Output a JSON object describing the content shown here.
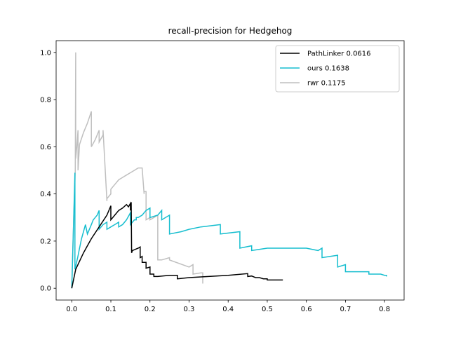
{
  "chart_data": {
    "type": "line",
    "title": "recall-precision for Hedgehog",
    "xlabel": "",
    "ylabel": "",
    "xlim": [
      -0.04,
      0.85
    ],
    "ylim": [
      -0.05,
      1.05
    ],
    "xticks": [
      "0.0",
      "0.1",
      "0.2",
      "0.3",
      "0.4",
      "0.5",
      "0.6",
      "0.7",
      "0.8"
    ],
    "xtick_values": [
      0.0,
      0.1,
      0.2,
      0.3,
      0.4,
      0.5,
      0.6,
      0.7,
      0.8
    ],
    "yticks": [
      "0.0",
      "0.2",
      "0.4",
      "0.6",
      "0.8",
      "1.0"
    ],
    "ytick_values": [
      0.0,
      0.2,
      0.4,
      0.6,
      0.8,
      1.0
    ],
    "grid": false,
    "legend_position": "upper-right",
    "series": [
      {
        "name": "PathLinker 0.0616",
        "color": "#000000",
        "x": [
          0.0,
          0.01,
          0.03,
          0.05,
          0.07,
          0.09,
          0.1,
          0.1,
          0.11,
          0.12,
          0.13,
          0.14,
          0.145,
          0.15,
          0.15,
          0.152,
          0.153,
          0.155,
          0.155,
          0.17,
          0.175,
          0.175,
          0.18,
          0.18,
          0.19,
          0.19,
          0.2,
          0.2,
          0.21,
          0.21,
          0.22,
          0.25,
          0.27,
          0.27,
          0.3,
          0.35,
          0.4,
          0.45,
          0.45,
          0.46,
          0.47,
          0.48,
          0.49,
          0.5,
          0.5,
          0.54
        ],
        "y": [
          0.0,
          0.08,
          0.15,
          0.21,
          0.26,
          0.31,
          0.35,
          0.29,
          0.31,
          0.33,
          0.34,
          0.355,
          0.345,
          0.36,
          0.33,
          0.365,
          0.15,
          0.16,
          0.16,
          0.17,
          0.175,
          0.13,
          0.135,
          0.11,
          0.11,
          0.085,
          0.09,
          0.06,
          0.06,
          0.05,
          0.05,
          0.055,
          0.055,
          0.04,
          0.045,
          0.05,
          0.055,
          0.062,
          0.05,
          0.052,
          0.045,
          0.045,
          0.04,
          0.04,
          0.035,
          0.035
        ]
      },
      {
        "name": "ours 0.1638",
        "color": "#17becf",
        "x": [
          0.0,
          0.005,
          0.008,
          0.008,
          0.015,
          0.02,
          0.025,
          0.03,
          0.035,
          0.04,
          0.045,
          0.05,
          0.055,
          0.06,
          0.065,
          0.07,
          0.07,
          0.08,
          0.09,
          0.09,
          0.1,
          0.11,
          0.12,
          0.12,
          0.13,
          0.135,
          0.14,
          0.15,
          0.15,
          0.16,
          0.165,
          0.165,
          0.17,
          0.18,
          0.19,
          0.2,
          0.2,
          0.22,
          0.23,
          0.23,
          0.25,
          0.25,
          0.28,
          0.3,
          0.33,
          0.38,
          0.38,
          0.43,
          0.43,
          0.46,
          0.46,
          0.5,
          0.55,
          0.6,
          0.63,
          0.64,
          0.64,
          0.68,
          0.68,
          0.7,
          0.7,
          0.76,
          0.76,
          0.79,
          0.8,
          0.805,
          0.805
        ],
        "y": [
          0.0,
          0.3,
          0.49,
          0.08,
          0.13,
          0.17,
          0.21,
          0.24,
          0.27,
          0.23,
          0.25,
          0.27,
          0.29,
          0.3,
          0.31,
          0.33,
          0.25,
          0.27,
          0.28,
          0.25,
          0.26,
          0.27,
          0.28,
          0.26,
          0.27,
          0.28,
          0.29,
          0.32,
          0.27,
          0.29,
          0.29,
          0.3,
          0.3,
          0.31,
          0.33,
          0.34,
          0.3,
          0.31,
          0.33,
          0.29,
          0.31,
          0.23,
          0.24,
          0.25,
          0.26,
          0.27,
          0.23,
          0.24,
          0.17,
          0.18,
          0.16,
          0.17,
          0.17,
          0.17,
          0.16,
          0.17,
          0.13,
          0.14,
          0.09,
          0.1,
          0.07,
          0.07,
          0.06,
          0.06,
          0.055,
          0.055,
          0.05
        ]
      },
      {
        "name": "rwr 0.1175",
        "color": "#bfbfbf",
        "x": [
          0.0,
          0.005,
          0.009,
          0.01,
          0.01,
          0.013,
          0.016,
          0.016,
          0.02,
          0.03,
          0.04,
          0.05,
          0.05,
          0.06,
          0.07,
          0.07,
          0.08,
          0.08,
          0.09,
          0.09,
          0.1,
          0.1,
          0.11,
          0.12,
          0.13,
          0.14,
          0.15,
          0.16,
          0.17,
          0.18,
          0.185,
          0.185,
          0.19,
          0.19,
          0.2,
          0.2,
          0.21,
          0.22,
          0.22,
          0.23,
          0.25,
          0.25,
          0.3,
          0.31,
          0.31,
          0.33,
          0.335,
          0.335
        ],
        "y": [
          0.0,
          0.3,
          0.5,
          1.0,
          0.55,
          0.6,
          0.67,
          0.5,
          0.61,
          0.66,
          0.7,
          0.75,
          0.6,
          0.63,
          0.67,
          0.62,
          0.65,
          0.67,
          0.37,
          0.38,
          0.4,
          0.42,
          0.44,
          0.46,
          0.47,
          0.48,
          0.49,
          0.5,
          0.51,
          0.51,
          0.4,
          0.41,
          0.41,
          0.29,
          0.3,
          0.29,
          0.3,
          0.31,
          0.12,
          0.12,
          0.13,
          0.12,
          0.09,
          0.1,
          0.06,
          0.065,
          0.065,
          0.02
        ]
      }
    ]
  }
}
